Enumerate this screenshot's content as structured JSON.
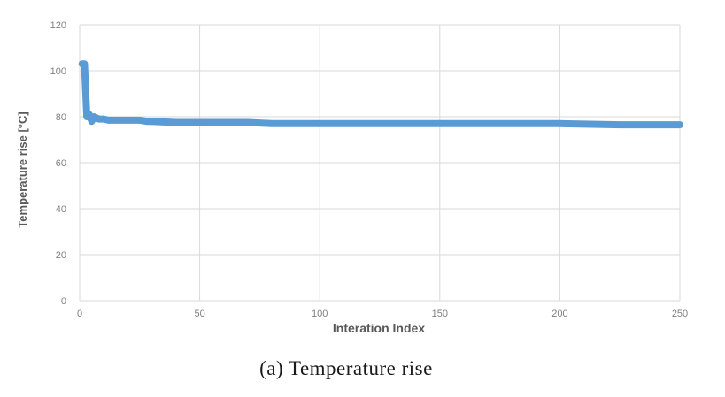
{
  "chart_data": {
    "type": "line",
    "title": "",
    "xlabel": "Interation Index",
    "ylabel": "Temperature rise [°C]",
    "xlim": [
      0,
      250
    ],
    "ylim": [
      0,
      120
    ],
    "xticks": [
      "0",
      "50",
      "100",
      "150",
      "200",
      "250"
    ],
    "yticks": [
      "0",
      "20",
      "40",
      "60",
      "80",
      "100",
      "120"
    ],
    "grid": "vertical and horizontal",
    "legend": "none",
    "line_color": "#5b9bd5",
    "series": [
      {
        "x": [
          1,
          2,
          3,
          4,
          5,
          6,
          7,
          8,
          10,
          12,
          15,
          20,
          25,
          28,
          30,
          40,
          50,
          60,
          70,
          80,
          90,
          100,
          125,
          150,
          175,
          200,
          225,
          250
        ],
        "y": [
          103,
          103,
          80,
          81,
          78,
          80,
          79.5,
          79,
          79,
          78.5,
          78.5,
          78.5,
          78.5,
          78,
          78,
          77.5,
          77.5,
          77.5,
          77.5,
          77,
          77,
          77,
          77,
          77,
          77,
          77,
          76.5,
          76.5
        ]
      }
    ]
  },
  "caption": "(a) Temperature rise"
}
